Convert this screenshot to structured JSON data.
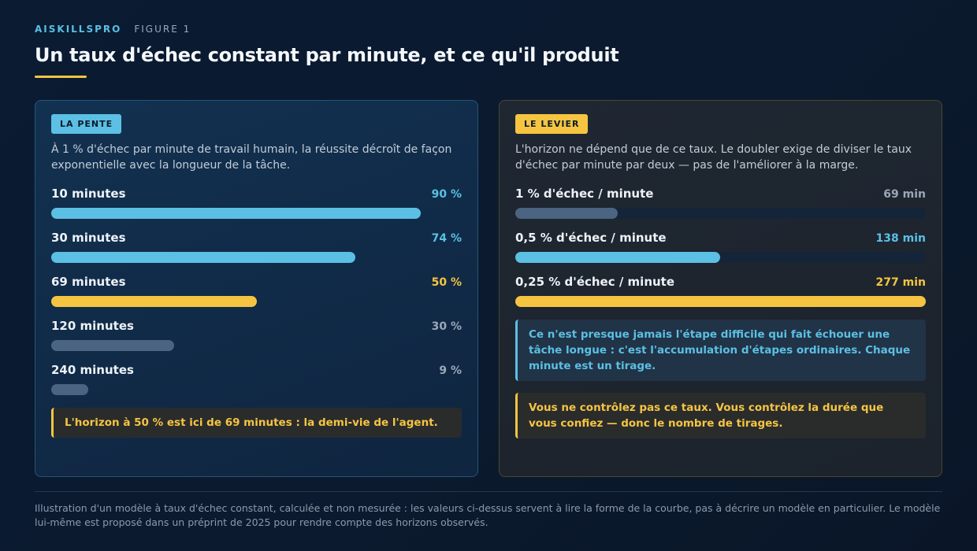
{
  "header": {
    "brand": "AISKILLSPRO",
    "figure": "FIGURE 1",
    "title": "Un taux d'échec constant par minute, et ce qu'il produit"
  },
  "left_panel": {
    "tag": "LA PENTE",
    "intro": "À 1 % d'échec par minute de travail humain, la réussite décroît de façon exponentielle avec la longueur de la tâche.",
    "note": "L'horizon à 50 % est ici de 69 minutes : la demi-vie de l'agent."
  },
  "right_panel": {
    "tag": "LE LEVIER",
    "intro": "L'horizon ne dépend que de ce taux. Le doubler exige de diviser le taux d'échec par minute par deux — pas de l'améliorer à la marge.",
    "note_blue": "Ce n'est presque jamais l'étape difficile qui fait échouer une tâche longue : c'est l'accumulation d'étapes ordinaires. Chaque minute est un tirage.",
    "note_yellow": "Vous ne contrôlez pas ce taux. Vous contrôlez la durée que vous confiez — donc le nombre de tirages."
  },
  "colors": {
    "blue": "#5bc0e3",
    "yellow": "#f5c542",
    "gray": "#4a6482",
    "gray_text": "#9aa8ba"
  },
  "chart_data": [
    {
      "type": "bar",
      "orientation": "horizontal",
      "categories": [
        "10 minutes",
        "30 minutes",
        "69 minutes",
        "120 minutes",
        "240 minutes"
      ],
      "values": [
        90,
        74,
        50,
        30,
        9
      ],
      "value_labels": [
        "90 %",
        "74 %",
        "50 %",
        "30 %",
        "9 %"
      ],
      "bar_colors": [
        "#5bc0e3",
        "#5bc0e3",
        "#f5c542",
        "#4a6482",
        "#4a6482"
      ],
      "label_colors": [
        "#5bc0e3",
        "#5bc0e3",
        "#f5c542",
        "#9aa8ba",
        "#9aa8ba"
      ],
      "xlim": [
        0,
        100
      ]
    },
    {
      "type": "bar",
      "orientation": "horizontal",
      "categories": [
        "1 % d'échec / minute",
        "0,5 % d'échec / minute",
        "0,25 % d'échec / minute"
      ],
      "values": [
        69,
        138,
        277
      ],
      "value_labels": [
        "69 min",
        "138 min",
        "277 min"
      ],
      "bar_colors": [
        "#4a6482",
        "#5bc0e3",
        "#f5c542"
      ],
      "label_colors": [
        "#9aa8ba",
        "#5bc0e3",
        "#f5c542"
      ],
      "xlim": [
        0,
        277
      ]
    }
  ],
  "footer": "Illustration d'un modèle à taux d'échec constant, calculée et non mesurée : les valeurs ci-dessus servent à lire la forme de la courbe, pas à décrire un modèle en particulier. Le modèle lui-même est proposé dans un préprint de 2025 pour rendre compte des horizons observés."
}
